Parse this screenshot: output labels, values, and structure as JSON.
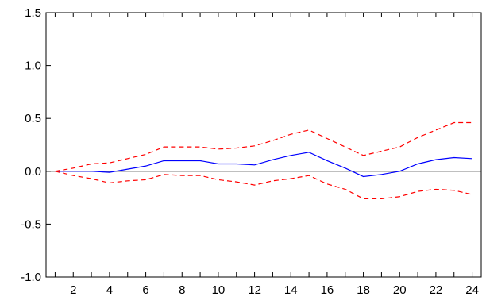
{
  "chart_data": {
    "type": "line",
    "title": "",
    "xlabel": "",
    "ylabel": "",
    "x": [
      1,
      2,
      3,
      4,
      5,
      6,
      7,
      8,
      9,
      10,
      11,
      12,
      13,
      14,
      15,
      16,
      17,
      18,
      19,
      20,
      21,
      22,
      23,
      24
    ],
    "xlim": [
      0.5,
      24.5
    ],
    "ylim": [
      -1.0,
      1.5
    ],
    "x_tick_labels": [
      "2",
      "4",
      "6",
      "8",
      "10",
      "12",
      "14",
      "16",
      "18",
      "20",
      "22",
      "24"
    ],
    "y_tick_labels": [
      "1.5",
      "1.0",
      "0.5",
      "0.0",
      "-0.5",
      "-1.0"
    ],
    "y_ticks": [
      1.5,
      1.0,
      0.5,
      0.0,
      -0.5,
      -1.0
    ],
    "x_ticks": [
      2,
      4,
      6,
      8,
      10,
      12,
      14,
      16,
      18,
      20,
      22,
      24
    ],
    "zero_line": 0.0,
    "grid": false,
    "legend": "none",
    "series": [
      {
        "color": "#0000ff",
        "style": "solid",
        "values": [
          0.0,
          0.0,
          0.0,
          -0.01,
          0.02,
          0.05,
          0.1,
          0.1,
          0.1,
          0.07,
          0.07,
          0.06,
          0.11,
          0.15,
          0.18,
          0.1,
          0.03,
          -0.05,
          -0.03,
          0.0,
          0.07,
          0.11,
          0.13,
          0.12
        ]
      },
      {
        "color": "#ff0000",
        "style": "dashed",
        "values": [
          0.0,
          0.03,
          0.07,
          0.08,
          0.12,
          0.16,
          0.23,
          0.23,
          0.23,
          0.21,
          0.22,
          0.24,
          0.29,
          0.35,
          0.39,
          0.31,
          0.23,
          0.15,
          0.19,
          0.23,
          0.32,
          0.39,
          0.46,
          0.46
        ]
      },
      {
        "color": "#ff0000",
        "style": "dashed",
        "values": [
          0.0,
          -0.04,
          -0.07,
          -0.11,
          -0.09,
          -0.08,
          -0.03,
          -0.04,
          -0.04,
          -0.08,
          -0.1,
          -0.13,
          -0.09,
          -0.07,
          -0.04,
          -0.12,
          -0.17,
          -0.26,
          -0.26,
          -0.24,
          -0.19,
          -0.17,
          -0.18,
          -0.22
        ]
      }
    ]
  }
}
